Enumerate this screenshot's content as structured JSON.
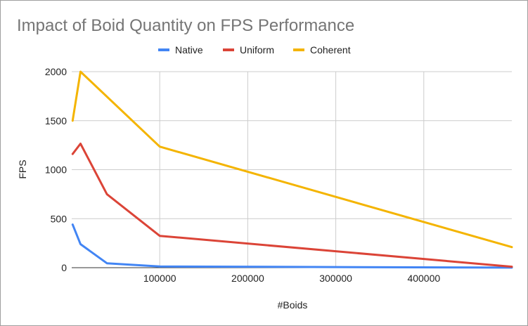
{
  "chart_data": {
    "type": "line",
    "title": "Impact of Boid Quantity on FPS Performance",
    "xlabel": "#Boids",
    "ylabel": "FPS",
    "xlim": [
      0,
      500000
    ],
    "ylim": [
      0,
      2000
    ],
    "xticks": [
      100000,
      200000,
      300000,
      400000
    ],
    "yticks": [
      0,
      500,
      1000,
      1500,
      2000
    ],
    "grid": true,
    "legend_position": "top",
    "series": [
      {
        "name": "Native",
        "color": "#4285f4",
        "points": [
          {
            "x": 1000,
            "y": 440
          },
          {
            "x": 10000,
            "y": 240
          },
          {
            "x": 40000,
            "y": 45
          },
          {
            "x": 100000,
            "y": 12
          },
          {
            "x": 500000,
            "y": 1
          }
        ]
      },
      {
        "name": "Uniform",
        "color": "#db4437",
        "points": [
          {
            "x": 1000,
            "y": 1160
          },
          {
            "x": 10000,
            "y": 1265
          },
          {
            "x": 40000,
            "y": 750
          },
          {
            "x": 100000,
            "y": 325
          },
          {
            "x": 500000,
            "y": 10
          }
        ]
      },
      {
        "name": "Coherent",
        "color": "#f4b400",
        "points": [
          {
            "x": 1000,
            "y": 1500
          },
          {
            "x": 10000,
            "y": 2000
          },
          {
            "x": 100000,
            "y": 1235
          },
          {
            "x": 500000,
            "y": 210
          }
        ]
      }
    ]
  }
}
